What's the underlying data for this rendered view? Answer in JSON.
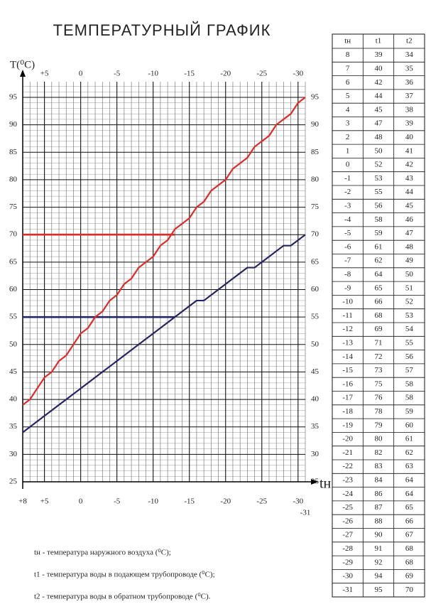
{
  "chart_data": {
    "type": "line",
    "title": "ТЕМПЕРАТУРНЫЙ ГРАФИК",
    "y_label": "T(⁰C)",
    "x_label": "tн",
    "x": [
      8,
      7,
      6,
      5,
      4,
      3,
      2,
      1,
      0,
      -1,
      -2,
      -3,
      -4,
      -5,
      -6,
      -7,
      -8,
      -9,
      -10,
      -11,
      -12,
      -13,
      -14,
      -15,
      -16,
      -17,
      -18,
      -19,
      -20,
      -21,
      -22,
      -23,
      -24,
      -25,
      -26,
      -27,
      -28,
      -29,
      -30,
      -31
    ],
    "series": [
      {
        "color": "#e02a26",
        "values": [
          39,
          40,
          42,
          44,
          45,
          47,
          48,
          50,
          52,
          53,
          55,
          56,
          58,
          59,
          61,
          62,
          64,
          65,
          66,
          68,
          69,
          71,
          72,
          73,
          75,
          76,
          78,
          79,
          80,
          82,
          83,
          84,
          86,
          87,
          88,
          90,
          91,
          92,
          94,
          95
        ]
      },
      {
        "color": "#252466",
        "values": [
          34,
          35,
          36,
          37,
          38,
          39,
          40,
          41,
          42,
          43,
          44,
          45,
          46,
          47,
          48,
          49,
          50,
          51,
          52,
          53,
          54,
          55,
          56,
          57,
          58,
          58,
          59,
          60,
          61,
          62,
          63,
          64,
          64,
          65,
          66,
          67,
          68,
          68,
          69,
          70
        ]
      }
    ],
    "limit_lines": [
      {
        "y": 70,
        "x_from": 8,
        "x_to": -13,
        "color": "#e02a26"
      },
      {
        "y": 55,
        "x_from": 8,
        "x_to": -13,
        "color": "#252466"
      }
    ],
    "xlim": [
      8,
      -31
    ],
    "ylim": [
      25,
      95
    ],
    "xticks": [
      {
        "value": 8,
        "label": "+8"
      },
      {
        "value": 5,
        "label": "+5"
      },
      0,
      -5,
      -10,
      -15,
      -20,
      -25,
      -30,
      -31
    ],
    "xticks_top": [
      {
        "value": 5,
        "label": "+5"
      },
      0,
      -5,
      -10,
      -15,
      -20,
      -25,
      -30
    ],
    "yticks": [
      25,
      30,
      35,
      40,
      45,
      50,
      55,
      60,
      65,
      70,
      75,
      80,
      85,
      90,
      95
    ],
    "grid": true,
    "notes": [
      "tн - температура наружного воздуха (⁰C);",
      "t1 - температура воды в подающем трубопроводе (⁰C);",
      "t2 - температура воды в обратном трубопроводе (⁰C)."
    ]
  },
  "table": {
    "header": [
      "tн",
      "t1",
      "t2"
    ],
    "rows": [
      [
        8,
        39,
        34
      ],
      [
        7,
        40,
        35
      ],
      [
        6,
        42,
        36
      ],
      [
        5,
        44,
        37
      ],
      [
        4,
        45,
        38
      ],
      [
        3,
        47,
        39
      ],
      [
        2,
        48,
        40
      ],
      [
        1,
        50,
        41
      ],
      [
        0,
        52,
        42
      ],
      [
        -1,
        53,
        43
      ],
      [
        -2,
        55,
        44
      ],
      [
        -3,
        56,
        45
      ],
      [
        -4,
        58,
        46
      ],
      [
        -5,
        59,
        47
      ],
      [
        -6,
        61,
        48
      ],
      [
        -7,
        62,
        49
      ],
      [
        -8,
        64,
        50
      ],
      [
        -9,
        65,
        51
      ],
      [
        -10,
        66,
        52
      ],
      [
        -11,
        68,
        53
      ],
      [
        -12,
        69,
        54
      ],
      [
        -13,
        71,
        55
      ],
      [
        -14,
        72,
        56
      ],
      [
        -15,
        73,
        57
      ],
      [
        -16,
        75,
        58
      ],
      [
        -17,
        76,
        58
      ],
      [
        -18,
        78,
        59
      ],
      [
        -19,
        79,
        60
      ],
      [
        -20,
        80,
        61
      ],
      [
        -21,
        82,
        62
      ],
      [
        -22,
        83,
        63
      ],
      [
        -23,
        84,
        64
      ],
      [
        -24,
        86,
        64
      ],
      [
        -25,
        87,
        65
      ],
      [
        -26,
        88,
        66
      ],
      [
        -27,
        90,
        67
      ],
      [
        -28,
        91,
        68
      ],
      [
        -29,
        92,
        68
      ],
      [
        -30,
        94,
        69
      ],
      [
        -31,
        95,
        70
      ]
    ]
  }
}
